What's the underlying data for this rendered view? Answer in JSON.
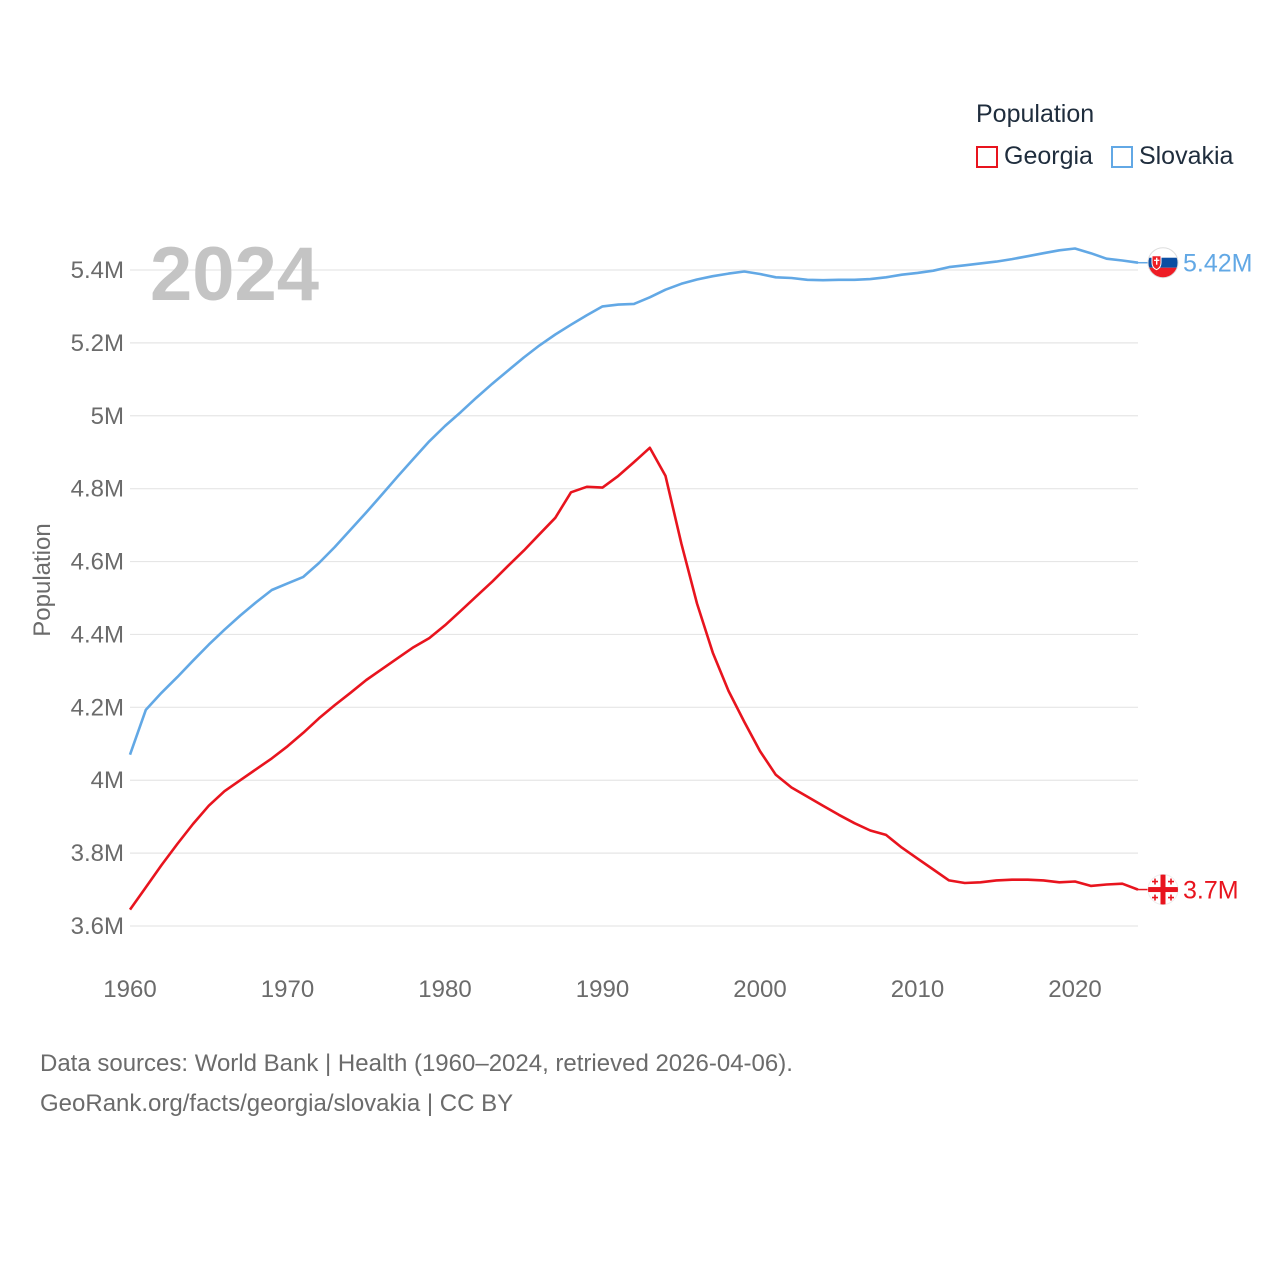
{
  "legend": {
    "title": "Population"
  },
  "footer": {
    "line1": "Data sources: World Bank | Health (1960–2024, retrieved 2026-04-06).",
    "line2": "GeoRank.org/facts/georgia/slovakia | CC BY"
  },
  "chart_data": {
    "type": "line",
    "title": "Population",
    "year_label": "2024",
    "xlabel": "",
    "ylabel": "Population",
    "xlim": [
      1960,
      2024
    ],
    "ylim": [
      3.5,
      5.55
    ],
    "y_unit": "M",
    "grid": true,
    "x_ticks": [
      1960,
      1970,
      1980,
      1990,
      2000,
      2010,
      2020
    ],
    "x_tick_labels": [
      "1960",
      "1970",
      "1980",
      "1990",
      "2000",
      "2010",
      "2020"
    ],
    "y_ticks": [
      3.6,
      3.8,
      4.0,
      4.2,
      4.4,
      4.6,
      4.8,
      5.0,
      5.2,
      5.4
    ],
    "y_tick_labels": [
      "3.6M",
      "3.8M",
      "4M",
      "4.2M",
      "4.4M",
      "4.6M",
      "4.8M",
      "5M",
      "5.2M",
      "5.4M"
    ],
    "x": [
      1960,
      1961,
      1962,
      1963,
      1964,
      1965,
      1966,
      1967,
      1968,
      1969,
      1970,
      1971,
      1972,
      1973,
      1974,
      1975,
      1976,
      1977,
      1978,
      1979,
      1980,
      1981,
      1982,
      1983,
      1984,
      1985,
      1986,
      1987,
      1988,
      1989,
      1990,
      1991,
      1992,
      1993,
      1994,
      1995,
      1996,
      1997,
      1998,
      1999,
      2000,
      2001,
      2002,
      2003,
      2004,
      2005,
      2006,
      2007,
      2008,
      2009,
      2010,
      2011,
      2012,
      2013,
      2014,
      2015,
      2016,
      2017,
      2018,
      2019,
      2020,
      2021,
      2022,
      2023,
      2024
    ],
    "series": [
      {
        "name": "Georgia",
        "color": "#e8141e",
        "end_label": "3.7M",
        "flag": "georgia-flag",
        "values": [
          3.645,
          3.706,
          3.767,
          3.825,
          3.88,
          3.93,
          3.97,
          4.0,
          4.03,
          4.06,
          4.093,
          4.13,
          4.17,
          4.206,
          4.24,
          4.275,
          4.305,
          4.335,
          4.365,
          4.39,
          4.425,
          4.465,
          4.505,
          4.545,
          4.588,
          4.63,
          4.675,
          4.72,
          4.79,
          4.805,
          4.803,
          4.835,
          4.873,
          4.912,
          4.835,
          4.65,
          4.485,
          4.35,
          4.245,
          4.16,
          4.08,
          4.015,
          3.98,
          3.955,
          3.93,
          3.905,
          3.882,
          3.862,
          3.85,
          3.815,
          3.785,
          3.755,
          3.725,
          3.718,
          3.72,
          3.725,
          3.727,
          3.727,
          3.725,
          3.72,
          3.722,
          3.71,
          3.714,
          3.716,
          3.7
        ]
      },
      {
        "name": "Slovakia",
        "color": "#62a8e5",
        "end_label": "5.42M",
        "flag": "slovakia-flag",
        "values": [
          4.07,
          4.193,
          4.24,
          4.283,
          4.328,
          4.372,
          4.413,
          4.452,
          4.488,
          4.522,
          4.54,
          4.558,
          4.596,
          4.64,
          4.687,
          4.735,
          4.784,
          4.834,
          4.882,
          4.93,
          4.972,
          5.01,
          5.05,
          5.088,
          5.124,
          5.16,
          5.193,
          5.223,
          5.25,
          5.276,
          5.3,
          5.305,
          5.307,
          5.325,
          5.346,
          5.362,
          5.374,
          5.383,
          5.39,
          5.396,
          5.389,
          5.38,
          5.378,
          5.373,
          5.372,
          5.373,
          5.373,
          5.375,
          5.38,
          5.387,
          5.392,
          5.398,
          5.408,
          5.413,
          5.418,
          5.423,
          5.43,
          5.438,
          5.446,
          5.454,
          5.459,
          5.446,
          5.431,
          5.426,
          5.42
        ]
      }
    ]
  }
}
